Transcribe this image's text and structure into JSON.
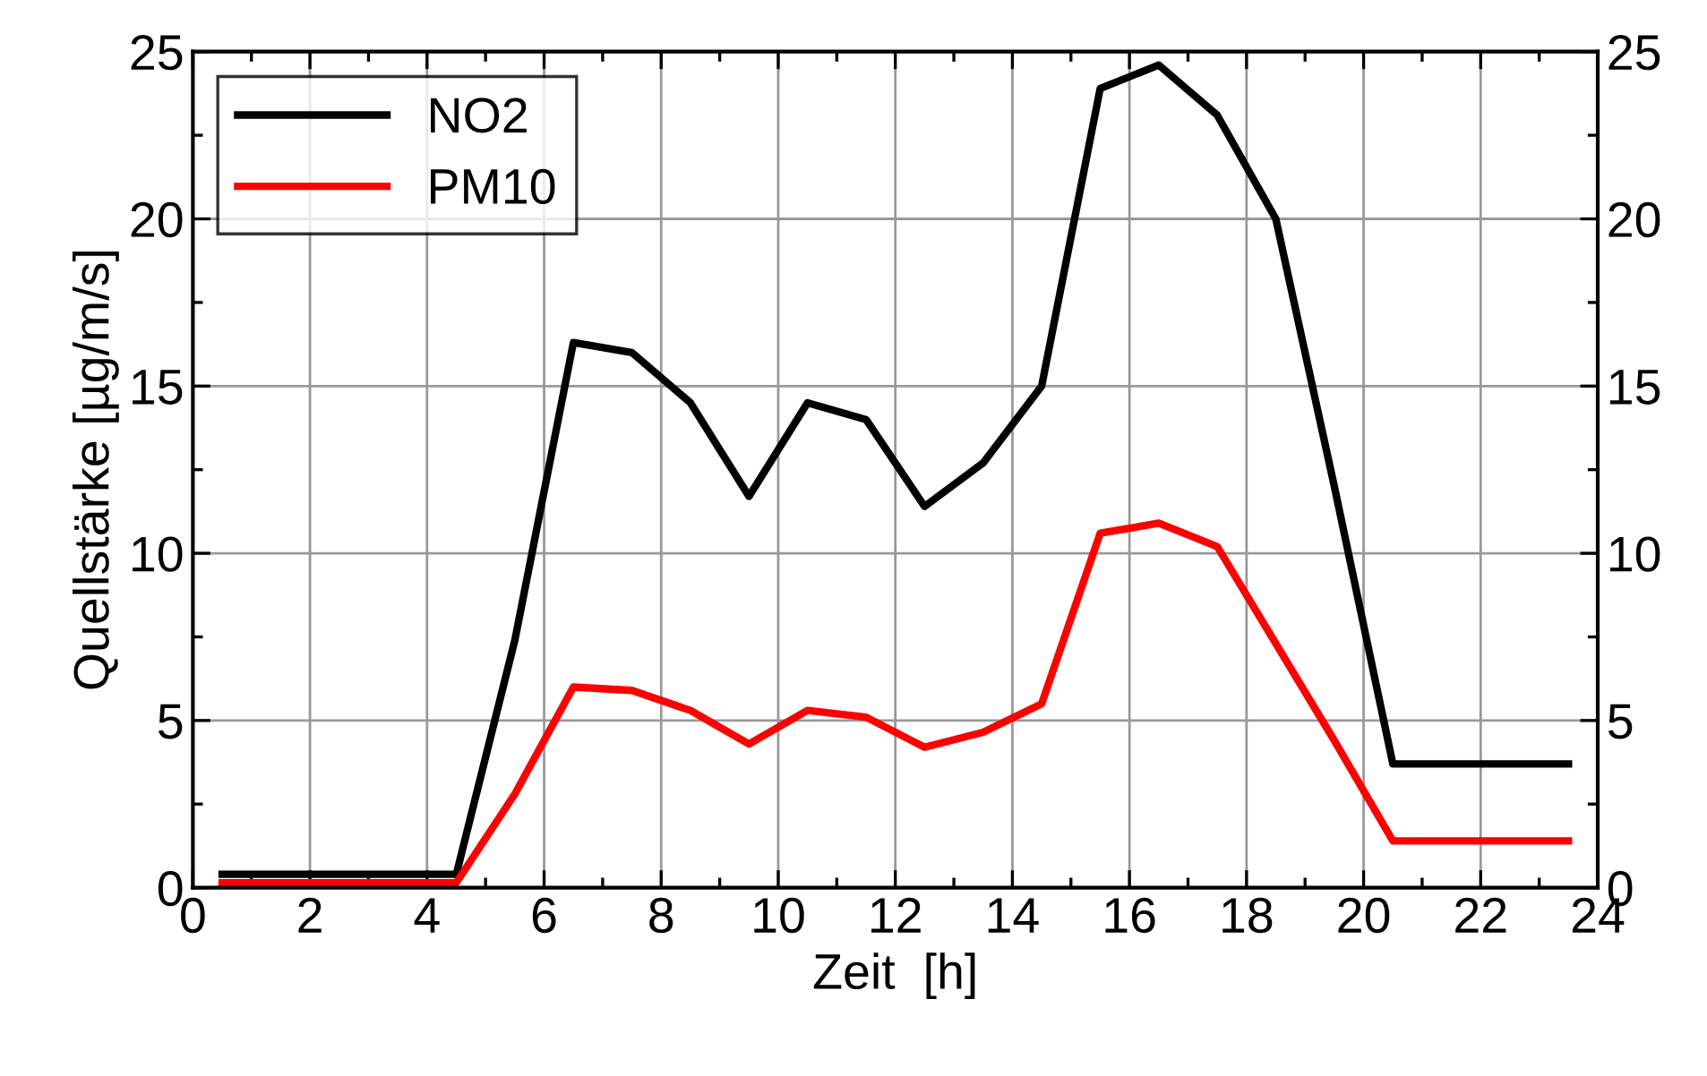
{
  "chart_data": {
    "type": "line",
    "xlabel": "Zeit  [h]",
    "ylabel": "Quellstärke [µg/m/s]",
    "x": [
      0.5,
      1.5,
      2.5,
      3.5,
      4.5,
      5.5,
      6.5,
      7.5,
      8.5,
      9.5,
      10.5,
      11.5,
      12.5,
      13.5,
      14.5,
      15.5,
      16.5,
      17.5,
      18.5,
      19.5,
      20.5,
      21.5,
      22.5,
      23.5
    ],
    "series": [
      {
        "name": "NO2",
        "color": "#000000",
        "values": [
          0.4,
          0.4,
          0.4,
          0.4,
          0.4,
          7.4,
          16.3,
          16.0,
          14.5,
          11.7,
          14.5,
          14.0,
          11.4,
          12.7,
          15.0,
          23.9,
          24.6,
          23.1,
          20.0,
          12.0,
          3.7,
          3.7,
          3.7,
          3.7
        ]
      },
      {
        "name": "PM10",
        "color": "#ff0000",
        "values": [
          0.15,
          0.15,
          0.15,
          0.15,
          0.15,
          2.8,
          6.0,
          5.9,
          5.3,
          4.3,
          5.3,
          5.1,
          4.2,
          4.65,
          5.5,
          10.6,
          10.9,
          10.2,
          7.3,
          4.4,
          1.4,
          1.4,
          1.4,
          1.4
        ]
      }
    ],
    "xlim": [
      0,
      24
    ],
    "xticks": [
      0,
      2,
      4,
      6,
      8,
      10,
      12,
      14,
      16,
      18,
      20,
      22,
      24
    ],
    "ylim": [
      0,
      25
    ],
    "yticks": [
      0,
      5,
      10,
      15,
      20,
      25
    ],
    "y2lim": [
      0,
      25
    ],
    "y2ticks": [
      0,
      5,
      10,
      15,
      20,
      25
    ],
    "grid": true,
    "legend": "top left",
    "marker": "none",
    "line_style": "solid"
  }
}
